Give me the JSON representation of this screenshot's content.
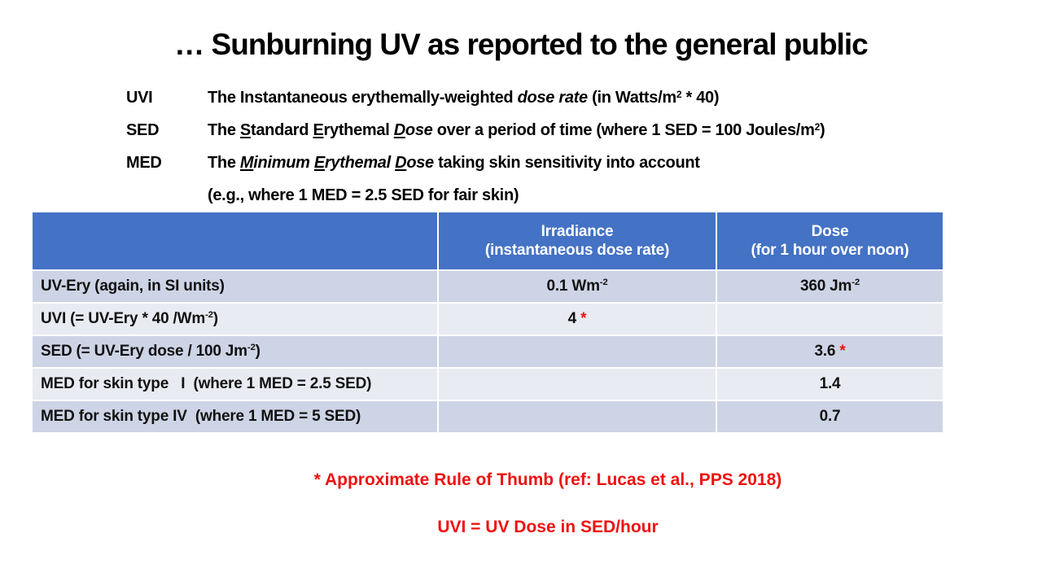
{
  "colors": {
    "header_blue": "#4472C4",
    "band_dark": "#CDD4E5",
    "band_light": "#E9EBF2",
    "footnote_red": "#EE1111",
    "text_dark": "#111111"
  },
  "title": "… Sunburning UV as reported to the general public",
  "definitions": [
    {
      "term": "UVI",
      "segments": [
        {
          "t": "The Instantaneous erythemally-weighted "
        },
        {
          "t": "dose rate",
          "i": true
        },
        {
          "t": " (in Watts/m"
        },
        {
          "t": "2",
          "sup": true
        },
        {
          "t": " * 40)"
        }
      ]
    },
    {
      "term": "SED",
      "segments": [
        {
          "t": "The "
        },
        {
          "t": "S",
          "u": true
        },
        {
          "t": "tandard "
        },
        {
          "t": "E",
          "u": true
        },
        {
          "t": "rythemal "
        },
        {
          "t": "D",
          "u": true,
          "i": true
        },
        {
          "t": "ose",
          "i": true
        },
        {
          "t": " over a period of time (where 1 SED = 100 Joules/m"
        },
        {
          "t": "2",
          "sup": true
        },
        {
          "t": ")"
        }
      ]
    },
    {
      "term": "MED",
      "segments": [
        {
          "t": "The "
        },
        {
          "t": "M",
          "u": true,
          "i": true
        },
        {
          "t": "inimum ",
          "i": true
        },
        {
          "t": "E",
          "u": true,
          "i": true
        },
        {
          "t": "rythemal ",
          "i": true
        },
        {
          "t": "D",
          "u": true,
          "i": true
        },
        {
          "t": "ose",
          "i": true
        },
        {
          "t": " taking skin sensitivity into account"
        }
      ]
    },
    {
      "term": "",
      "segments": [
        {
          "t": "(e.g., where 1 MED = 2.5 SED for fair skin)"
        }
      ]
    }
  ],
  "table": {
    "columns": [
      {
        "line1": "",
        "line2": ""
      },
      {
        "line1": "Irradiance",
        "line2": "(instantaneous dose rate)"
      },
      {
        "line1": "Dose",
        "line2": "(for 1 hour over noon)"
      }
    ],
    "rows": [
      {
        "label": [
          {
            "t": "UV-Ery (again, in SI units)"
          }
        ],
        "irradiance": [
          {
            "t": "0.1 Wm"
          },
          {
            "t": "-2",
            "sup": true
          }
        ],
        "dose": [
          {
            "t": "360 Jm"
          },
          {
            "t": "-2",
            "sup": true
          }
        ]
      },
      {
        "label": [
          {
            "t": "UVI (= UV-Ery * 40 /Wm"
          },
          {
            "t": "-2",
            "sup": true
          },
          {
            "t": ")"
          }
        ],
        "irradiance": [
          {
            "t": "4 "
          },
          {
            "t": "*",
            "red": true
          }
        ],
        "dose": []
      },
      {
        "label": [
          {
            "t": "SED (= UV-Ery dose / 100 Jm"
          },
          {
            "t": "-2",
            "sup": true
          },
          {
            "t": ")"
          }
        ],
        "irradiance": [],
        "dose": [
          {
            "t": "3.6 "
          },
          {
            "t": "*",
            "red": true
          }
        ]
      },
      {
        "label": [
          {
            "t": "MED for skin type   I  (where 1 MED = 2.5 SED)"
          }
        ],
        "irradiance": [],
        "dose": [
          {
            "t": "1.4"
          }
        ]
      },
      {
        "label": [
          {
            "t": "MED for skin type IV  (where 1 MED = 5 SED)"
          }
        ],
        "irradiance": [],
        "dose": [
          {
            "t": "0.7"
          }
        ]
      }
    ]
  },
  "footnotes": [
    "* Approximate Rule of Thumb (ref: Lucas et al., PPS 2018)",
    "UVI = UV Dose in SED/hour"
  ]
}
